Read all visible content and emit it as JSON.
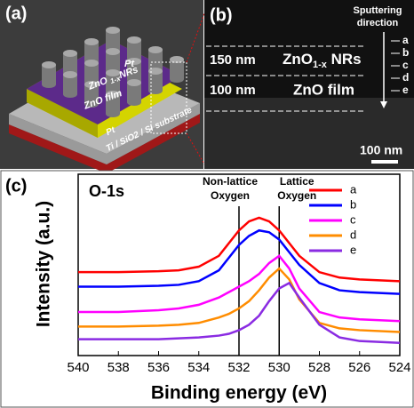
{
  "panel_a": {
    "label": "(a)",
    "pt_top": "Pt",
    "nrs": [
      "ZnO ",
      "1-x",
      "NRs"
    ],
    "film": "ZnO film",
    "pt_bottom": "Pt",
    "substrate": "Ti / SiO2 / Si substrate"
  },
  "panel_b": {
    "label": "(b)",
    "nrs_thickness": "150 nm",
    "film_thickness": "100 nm",
    "nrs": [
      "ZnO",
      "1-x",
      " NRs"
    ],
    "film": "ZnO film",
    "direction": [
      "Sputtering",
      "direction"
    ],
    "levels": [
      "a",
      "b",
      "c",
      "d",
      "e"
    ],
    "scale_bar": "100 nm"
  },
  "chart_data": {
    "type": "line",
    "panel_label": "(c)",
    "title": "O-1s",
    "x_label": "Binding energy (eV)",
    "y_label": "Intensity (a.u.)",
    "x": [
      540,
      538,
      536,
      535,
      534,
      533,
      532.5,
      532,
      531.5,
      531,
      530.5,
      530,
      529.5,
      529,
      528,
      527,
      526,
      524
    ],
    "series": [
      {
        "name": "a",
        "color": "#ff0000",
        "values": [
          46,
          46,
          46.5,
          47,
          49,
          55,
          62,
          69,
          74,
          76,
          74,
          69,
          62,
          55,
          46,
          43,
          42,
          41
        ]
      },
      {
        "name": "b",
        "color": "#0000ff",
        "values": [
          38,
          38,
          38.5,
          39,
          41,
          47,
          54,
          61,
          66,
          69,
          68,
          64,
          57,
          50,
          40,
          36,
          35,
          34
        ]
      },
      {
        "name": "c",
        "color": "#ff00ff",
        "values": [
          24,
          24,
          25,
          26,
          28,
          32,
          35,
          38,
          41,
          45,
          51,
          55,
          48,
          37,
          24,
          21,
          20,
          19
        ]
      },
      {
        "name": "d",
        "color": "#ff8c00",
        "values": [
          16,
          16,
          16.5,
          17,
          18,
          21,
          23,
          26,
          30,
          36,
          43,
          48,
          42,
          31,
          18,
          15,
          14,
          13
        ]
      },
      {
        "name": "e",
        "color": "#8a2be2",
        "values": [
          9,
          9,
          9,
          9.5,
          10,
          11,
          12,
          14,
          17,
          22,
          30,
          37,
          40,
          32,
          17,
          10,
          8,
          7
        ]
      }
    ],
    "annotations": [
      {
        "lines": [
          "Non-lattice",
          "Oxygen"
        ],
        "x": 532
      },
      {
        "lines": [
          "Lattice",
          "Oxygen"
        ],
        "x": 530
      }
    ],
    "xlim": [
      540,
      524
    ],
    "xticks": [
      540,
      538,
      536,
      534,
      532,
      530,
      528,
      526,
      524
    ],
    "ylim": [
      0,
      100
    ],
    "legend": "upper right"
  }
}
